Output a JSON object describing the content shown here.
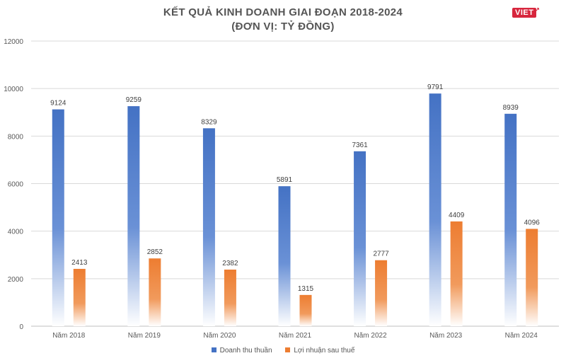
{
  "chart_data": {
    "type": "bar",
    "title": "KẾT QUẢ KINH DOANH GIAI ĐOẠN 2018-2024",
    "subtitle": "(ĐƠN VỊ: TỶ ĐỒNG)",
    "categories": [
      "Năm 2018",
      "Năm 2019",
      "Năm 2020",
      "Năm 2021",
      "Năm 2022",
      "Năm 2023",
      "Năm 2024"
    ],
    "series": [
      {
        "name": "Doanh thu thuần",
        "color": "#4472c4",
        "values": [
          9124,
          9259,
          8329,
          5891,
          7361,
          9791,
          8939
        ]
      },
      {
        "name": "Lợi nhuận sau thuế",
        "color": "#ed7d31",
        "values": [
          2413,
          2852,
          2382,
          1315,
          2777,
          4409,
          4096
        ]
      }
    ],
    "ylim": [
      0,
      12000
    ],
    "yticks": [
      0,
      2000,
      4000,
      6000,
      8000,
      10000,
      12000
    ],
    "grid": true,
    "legend": "bottom",
    "xlabel": "",
    "ylabel": ""
  },
  "brand": {
    "logo_text": "VIET"
  }
}
